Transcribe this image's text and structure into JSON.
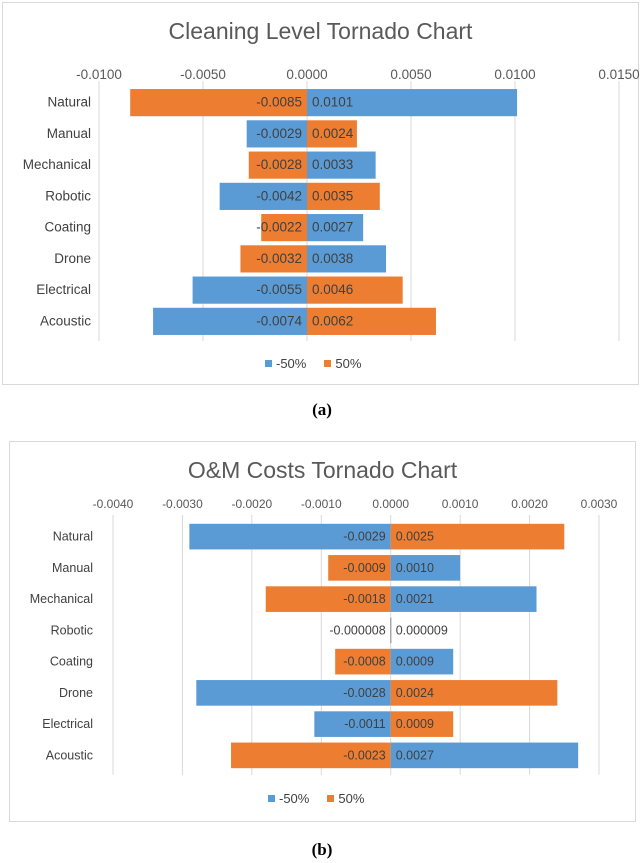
{
  "figure_a": {
    "caption": "(a)",
    "chart_data": {
      "type": "bar",
      "orientation": "horizontal",
      "subtype": "tornado",
      "title": "Cleaning Level Tornado Chart",
      "categories": [
        "Natural",
        "Manual",
        "Mechanical",
        "Robotic",
        "Coating",
        "Drone",
        "Electrical",
        "Acoustic"
      ],
      "xlim": [
        -0.01,
        0.015
      ],
      "ticks": [
        -0.01,
        -0.005,
        0,
        0.005,
        0.01,
        0.015
      ],
      "tick_labels": [
        "-0.0100",
        "-0.0050",
        "0.0000",
        "0.0050",
        "0.0100",
        "0.0150"
      ],
      "left_values": [
        -0.0085,
        -0.0029,
        -0.0028,
        -0.0042,
        -0.0022,
        -0.0032,
        -0.0055,
        -0.0074
      ],
      "left_labels": [
        "-0.0085",
        "-0.0029",
        "-0.0028",
        "-0.0042",
        "-0.0022",
        "-0.0032",
        "-0.0055",
        "-0.0074"
      ],
      "left_series": [
        "50%",
        "-50%",
        "50%",
        "-50%",
        "50%",
        "50%",
        "-50%",
        "-50%"
      ],
      "right_values": [
        0.0101,
        0.0024,
        0.0033,
        0.0035,
        0.0027,
        0.0038,
        0.0046,
        0.0062
      ],
      "right_labels": [
        "0.0101",
        "0.0024",
        "0.0033",
        "0.0035",
        "0.0027",
        "0.0038",
        "0.0046",
        "0.0062"
      ],
      "right_series": [
        "-50%",
        "50%",
        "-50%",
        "50%",
        "-50%",
        "-50%",
        "50%",
        "50%"
      ],
      "series": [
        {
          "name": "-50%",
          "color": "#5b9bd5"
        },
        {
          "name": "50%",
          "color": "#ed7d31"
        }
      ],
      "grid": true,
      "legend": "bottom"
    }
  },
  "figure_b": {
    "caption": "(b)",
    "chart_data": {
      "type": "bar",
      "orientation": "horizontal",
      "subtype": "tornado",
      "title": "O&M Costs Tornado Chart",
      "categories": [
        "Natural",
        "Manual",
        "Mechanical",
        "Robotic",
        "Coating",
        "Drone",
        "Electrical",
        "Acoustic"
      ],
      "xlim": [
        -0.004,
        0.003
      ],
      "ticks": [
        -0.004,
        -0.003,
        -0.002,
        -0.001,
        0,
        0.001,
        0.002,
        0.003
      ],
      "tick_labels": [
        "-0.0040",
        "-0.0030",
        "-0.0020",
        "-0.0010",
        "0.0000",
        "0.0010",
        "0.0020",
        "0.0030"
      ],
      "left_values": [
        -0.0029,
        -0.0009,
        -0.0018,
        -8e-06,
        -0.0008,
        -0.0028,
        -0.0011,
        -0.0023
      ],
      "left_labels": [
        "-0.0029",
        "-0.0009",
        "-0.0018",
        "-0.000008",
        "-0.0008",
        "-0.0028",
        "-0.0011",
        "-0.0023"
      ],
      "left_series": [
        "-50%",
        "50%",
        "50%",
        "50%",
        "50%",
        "-50%",
        "-50%",
        "50%"
      ],
      "right_values": [
        0.0025,
        0.001,
        0.0021,
        9e-06,
        0.0009,
        0.0024,
        0.0009,
        0.0027
      ],
      "right_labels": [
        "0.0025",
        "0.0010",
        "0.0021",
        "0.000009",
        "0.0009",
        "0.0024",
        "0.0009",
        "0.0027"
      ],
      "right_series": [
        "50%",
        "-50%",
        "-50%",
        "-50%",
        "-50%",
        "50%",
        "50%",
        "-50%"
      ],
      "series": [
        {
          "name": "-50%",
          "color": "#5b9bd5"
        },
        {
          "name": "50%",
          "color": "#ed7d31"
        }
      ],
      "grid": true,
      "legend": "bottom"
    }
  }
}
